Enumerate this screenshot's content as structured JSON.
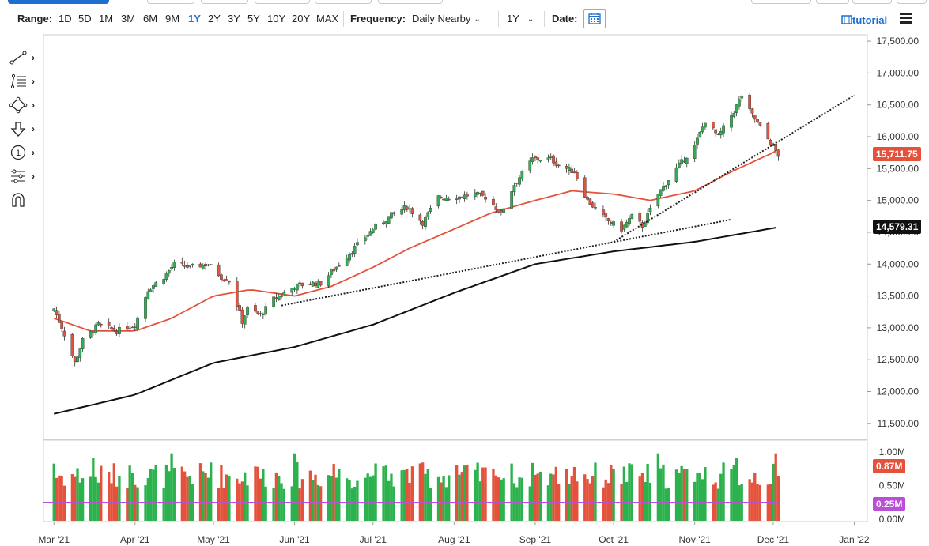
{
  "toolbar": {
    "range_label": "Range:",
    "ranges": [
      "1D",
      "5D",
      "1M",
      "3M",
      "6M",
      "9M",
      "1Y",
      "2Y",
      "3Y",
      "5Y",
      "10Y",
      "20Y",
      "MAX"
    ],
    "active_range": "1Y",
    "frequency_label": "Frequency:",
    "frequency_value": "Daily Nearby",
    "period_value": "1Y",
    "date_label": "Date:",
    "tutorial_label": "tutorial"
  },
  "tools": [
    {
      "name": "line-tool-icon"
    },
    {
      "name": "fibonacci-tool-icon"
    },
    {
      "name": "shape-tool-icon"
    },
    {
      "name": "arrow-tool-icon"
    },
    {
      "name": "annotation-tool-icon"
    },
    {
      "name": "indicator-settings-icon"
    },
    {
      "name": "magnet-icon"
    }
  ],
  "colors": {
    "up": "#2bb24c",
    "down": "#e4523b",
    "ma50": "#e4523b",
    "ma200": "#111111",
    "trendline": "#222222",
    "volume_ma": "#b84fd6",
    "accent": "#1e6fd0"
  },
  "chart_data": {
    "type": "candlestick",
    "price_axis": {
      "ticks": [
        "17,500.00",
        "17,000.00",
        "16,500.00",
        "16,000.00",
        "15,500.00",
        "15,000.00",
        "14,500.00",
        "14,000.00",
        "13,500.00",
        "13,000.00",
        "12,500.00",
        "12,000.00",
        "11,500.00"
      ],
      "ylim": [
        11250,
        17600
      ]
    },
    "date_axis": [
      "Mar '21",
      "Apr '21",
      "May '21",
      "Jun '21",
      "Jul '21",
      "Aug '21",
      "Sep '21",
      "Oct '21",
      "Nov '21",
      "Dec '21",
      "Jan '22"
    ],
    "price_anchors": [
      [
        "2021-03-01",
        13300
      ],
      [
        "2021-03-05",
        12900
      ],
      [
        "2021-03-09",
        12450
      ],
      [
        "2021-03-12",
        12800
      ],
      [
        "2021-03-18",
        13050
      ],
      [
        "2021-03-25",
        12950
      ],
      [
        "2021-04-01",
        13050
      ],
      [
        "2021-04-06",
        13600
      ],
      [
        "2021-04-12",
        13800
      ],
      [
        "2021-04-16",
        14000
      ],
      [
        "2021-04-22",
        13950
      ],
      [
        "2021-04-29",
        14000
      ],
      [
        "2021-05-04",
        13800
      ],
      [
        "2021-05-07",
        13750
      ],
      [
        "2021-05-12",
        13100
      ],
      [
        "2021-05-14",
        13300
      ],
      [
        "2021-05-19",
        13200
      ],
      [
        "2021-05-24",
        13450
      ],
      [
        "2021-06-01",
        13650
      ],
      [
        "2021-06-07",
        13700
      ],
      [
        "2021-06-11",
        13700
      ],
      [
        "2021-06-18",
        14000
      ],
      [
        "2021-06-25",
        14300
      ],
      [
        "2021-07-01",
        14550
      ],
      [
        "2021-07-09",
        14800
      ],
      [
        "2021-07-14",
        14900
      ],
      [
        "2021-07-20",
        14650
      ],
      [
        "2021-07-26",
        15050
      ],
      [
        "2021-08-02",
        15050
      ],
      [
        "2021-08-09",
        15100
      ],
      [
        "2021-08-13",
        15050
      ],
      [
        "2021-08-19",
        14800
      ],
      [
        "2021-08-24",
        15250
      ],
      [
        "2021-08-31",
        15650
      ],
      [
        "2021-09-07",
        15650
      ],
      [
        "2021-09-10",
        15550
      ],
      [
        "2021-09-16",
        15450
      ],
      [
        "2021-09-21",
        15000
      ],
      [
        "2021-09-28",
        14700
      ],
      [
        "2021-10-04",
        14550
      ],
      [
        "2021-10-08",
        14750
      ],
      [
        "2021-10-12",
        14600
      ],
      [
        "2021-10-18",
        15100
      ],
      [
        "2021-10-25",
        15500
      ],
      [
        "2021-11-01",
        15850
      ],
      [
        "2021-11-05",
        16250
      ],
      [
        "2021-11-10",
        16000
      ],
      [
        "2021-11-16",
        16400
      ],
      [
        "2021-11-19",
        16650
      ],
      [
        "2021-11-22",
        16400
      ],
      [
        "2021-11-26",
        16150
      ],
      [
        "2021-11-30",
        15900
      ],
      [
        "2021-12-03",
        15711.75
      ]
    ],
    "series": [
      {
        "name": "Moving Average 50",
        "color": "#e4523b"
      },
      {
        "name": "Moving Average 200",
        "color": "#111111"
      }
    ],
    "ma50_anchors": [
      [
        "2021-03-01",
        13150
      ],
      [
        "2021-03-15",
        12950
      ],
      [
        "2021-04-01",
        12950
      ],
      [
        "2021-04-15",
        13150
      ],
      [
        "2021-05-01",
        13500
      ],
      [
        "2021-05-15",
        13600
      ],
      [
        "2021-06-01",
        13500
      ],
      [
        "2021-06-15",
        13650
      ],
      [
        "2021-07-01",
        13950
      ],
      [
        "2021-07-15",
        14250
      ],
      [
        "2021-08-01",
        14550
      ],
      [
        "2021-08-15",
        14800
      ],
      [
        "2021-09-01",
        15000
      ],
      [
        "2021-09-15",
        15150
      ],
      [
        "2021-10-01",
        15100
      ],
      [
        "2021-10-15",
        15000
      ],
      [
        "2021-11-01",
        15150
      ],
      [
        "2021-11-15",
        15450
      ],
      [
        "2021-12-01",
        15750
      ],
      [
        "2021-12-03",
        15800
      ]
    ],
    "ma200_anchors": [
      [
        "2021-03-01",
        11650
      ],
      [
        "2021-04-01",
        11950
      ],
      [
        "2021-05-01",
        12450
      ],
      [
        "2021-06-01",
        12700
      ],
      [
        "2021-07-01",
        13050
      ],
      [
        "2021-08-01",
        13550
      ],
      [
        "2021-09-01",
        14000
      ],
      [
        "2021-10-01",
        14200
      ],
      [
        "2021-11-01",
        14350
      ],
      [
        "2021-12-03",
        14579.31
      ]
    ],
    "trendlines": [
      {
        "from": [
          "2021-05-27",
          13350
        ],
        "to": [
          "2021-11-15",
          14700
        ]
      },
      {
        "from": [
          "2021-10-01",
          14350
        ],
        "to": [
          "2022-01-01",
          16650
        ]
      }
    ],
    "last_price": "15,711.75",
    "ma200_value": "14,579.31",
    "volume": {
      "axis_ticks": [
        "1.00M",
        "0.50M",
        "0.00M"
      ],
      "ylim": [
        0,
        1.0
      ],
      "last_volume": "0.87M",
      "volume_ma": "0.25M",
      "ma_level": 0.25
    }
  }
}
